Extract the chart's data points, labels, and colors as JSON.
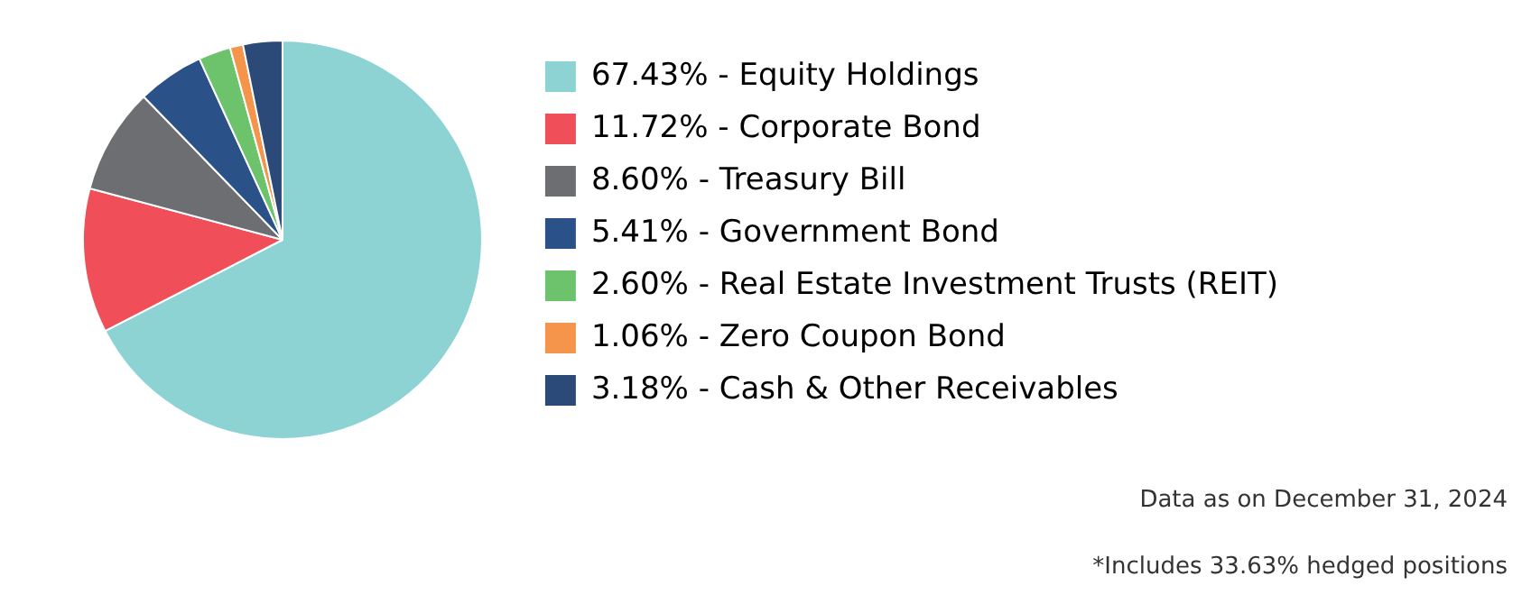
{
  "chart_data": {
    "type": "pie",
    "categories": [
      "Equity Holdings",
      "Corporate Bond",
      "Treasury Bill",
      "Government Bond",
      "Real Estate Investment Trusts (REIT)",
      "Zero Coupon Bond",
      "Cash & Other Receivables"
    ],
    "values": [
      67.43,
      11.72,
      8.6,
      5.41,
      2.6,
      1.06,
      3.18
    ],
    "value_labels": [
      "67.43%",
      "11.72%",
      "8.60%",
      "5.41%",
      "2.60%",
      "1.06%",
      "3.18%"
    ],
    "colors": [
      "#8dd3d4",
      "#f04e58",
      "#6d6e71",
      "#2b5189",
      "#6cc36b",
      "#f5954b",
      "#2b4a77"
    ],
    "legend": "right",
    "annotations": [
      "Data as on December 31, 2024",
      "*Includes 33.63% hedged positions"
    ]
  }
}
